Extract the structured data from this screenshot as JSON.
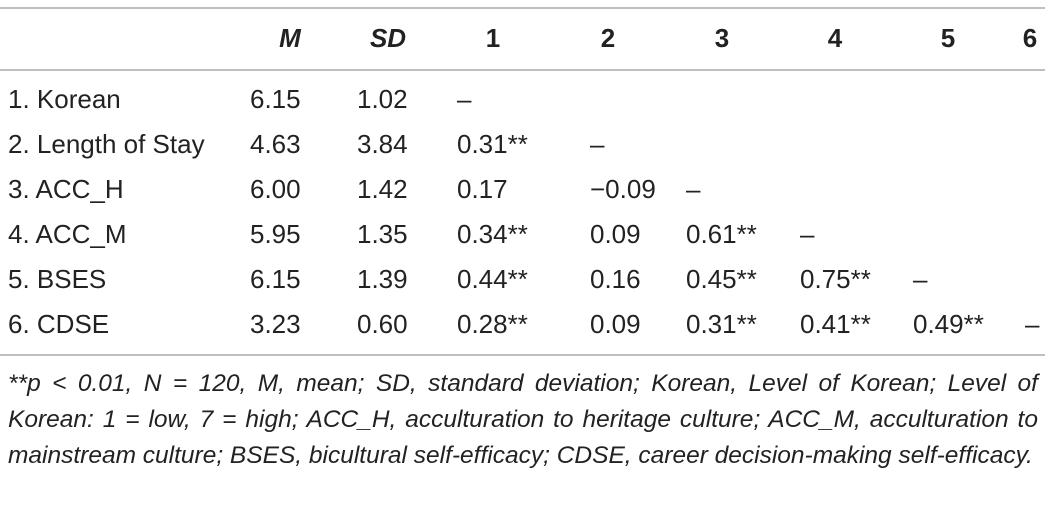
{
  "table": {
    "header": [
      "M",
      "SD",
      "1",
      "2",
      "3",
      "4",
      "5",
      "6"
    ],
    "rows": [
      {
        "label": "1. Korean",
        "cells": [
          "6.15",
          "1.02",
          "–"
        ]
      },
      {
        "label": "2. Length of Stay",
        "cells": [
          "4.63",
          "3.84",
          "0.31**",
          "–"
        ]
      },
      {
        "label": "3. ACC_H",
        "cells": [
          "6.00",
          "1.42",
          "0.17",
          "−0.09",
          "–"
        ]
      },
      {
        "label": "4. ACC_M",
        "cells": [
          "5.95",
          "1.35",
          "0.34**",
          "0.09",
          "0.61**",
          "–"
        ]
      },
      {
        "label": "5. BSES",
        "cells": [
          "6.15",
          "1.39",
          "0.44**",
          "0.16",
          "0.45**",
          "0.75**",
          "–"
        ]
      },
      {
        "label": "6. CDSE",
        "cells": [
          "3.23",
          "0.60",
          "0.28**",
          "0.09",
          "0.31**",
          "0.41**",
          "0.49**",
          "–"
        ]
      }
    ]
  },
  "footnote": "**p < 0.01, N = 120, M, mean; SD, standard deviation; Korean, Level of Korean; Level of Korean: 1 = low, 7 = high; ACC_H, acculturation to heritage culture; ACC_M, acculturation to mainstream culture; BSES, bicultural self-efficacy; CDSE, career decision-making self-efficacy."
}
